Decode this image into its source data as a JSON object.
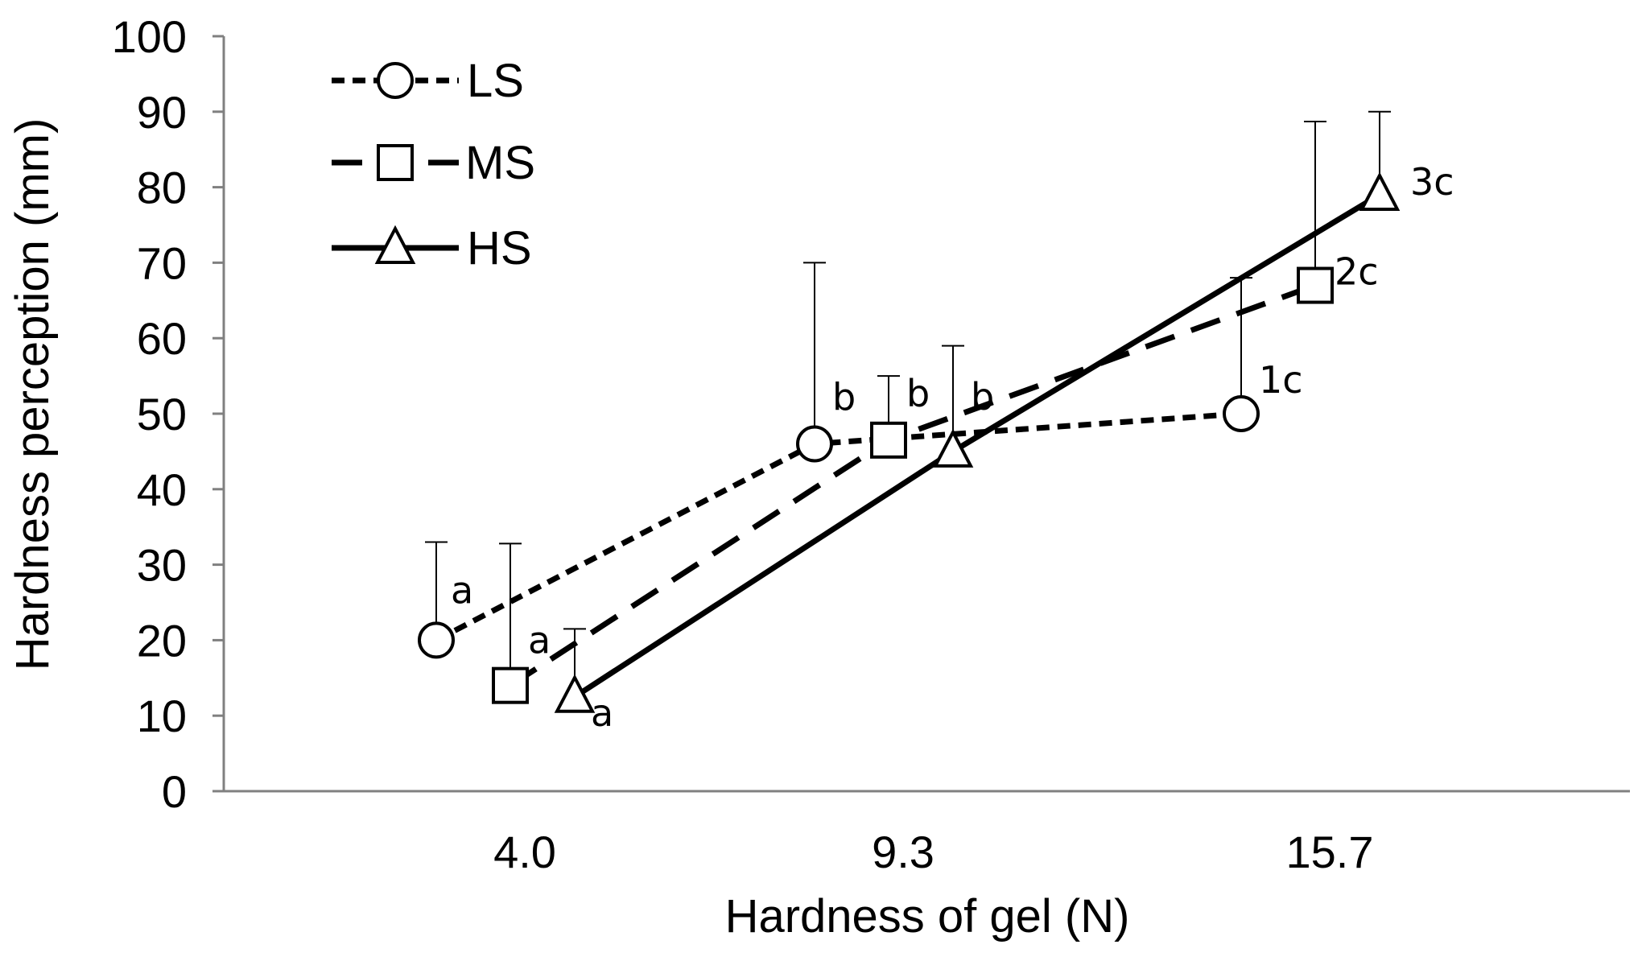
{
  "chart_data": {
    "type": "line",
    "title": "",
    "xlabel": "Hardness of gel (N)",
    "ylabel": "Hardness perception (mm)",
    "ylim": [
      0,
      100
    ],
    "yticks": [
      "0",
      "10",
      "20",
      "30",
      "40",
      "50",
      "60",
      "70",
      "80",
      "90",
      "100"
    ],
    "categories": [
      "4.0",
      "9.3",
      "15.7"
    ],
    "legend_position": "top-left",
    "series": [
      {
        "name": "LS",
        "marker": "circle",
        "line": "dotted",
        "values": [
          20,
          46,
          50
        ],
        "error_upper": [
          33,
          70,
          68
        ],
        "labels": [
          "a",
          "b",
          "1c"
        ]
      },
      {
        "name": "MS",
        "marker": "square",
        "line": "dashed",
        "values": [
          14,
          46.5,
          67
        ],
        "error_upper": [
          32.8,
          55,
          88.7
        ],
        "labels": [
          "a",
          "b",
          "2c"
        ]
      },
      {
        "name": "HS",
        "marker": "triangle",
        "line": "solid",
        "values": [
          12.5,
          45,
          79
        ],
        "error_upper": [
          21.5,
          59,
          90
        ],
        "labels": [
          "a",
          "b",
          "3c"
        ]
      }
    ]
  }
}
